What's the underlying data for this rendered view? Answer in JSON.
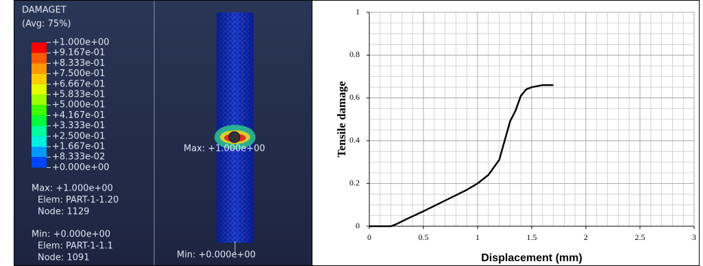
{
  "abaqus_panel": {
    "variable": "DAMAGET",
    "averaging": "(Avg: 75%)",
    "contour_labels": [
      "+1.000e+00",
      "+9.167e-01",
      "+8.333e-01",
      "+7.500e-01",
      "+6.667e-01",
      "+5.833e-01",
      "+5.000e-01",
      "+4.167e-01",
      "+3.333e-01",
      "+2.500e-01",
      "+1.667e-01",
      "+8.333e-02",
      "+0.000e+00"
    ],
    "contour_colors": [
      "#ff0000",
      "#ff5a00",
      "#ff9800",
      "#ffcc00",
      "#e5ff00",
      "#9cff00",
      "#3cff00",
      "#00ff3a",
      "#00ff9c",
      "#00f0e0",
      "#0098ff",
      "#0044ff"
    ],
    "max_info": [
      "Max: +1.000e+00",
      "Elem: PART-1-1.20",
      "Node: 1129"
    ],
    "min_info": [
      "Min: +0.000e+00",
      "Elem: PART-1-1.1",
      "Node: 1091"
    ],
    "model_max_label": "Max: +1.000e+00",
    "model_min_label": "Min: +0.000e+00"
  },
  "chart_data": {
    "type": "line",
    "x_label": "Displacement (mm)",
    "y_label": "Tensile damage",
    "x": [
      0,
      0.2,
      0.25,
      0.35,
      0.5,
      0.7,
      0.9,
      1.0,
      1.1,
      1.2,
      1.25,
      1.3,
      1.35,
      1.4,
      1.45,
      1.5,
      1.6,
      1.7
    ],
    "values": [
      0,
      0,
      0.01,
      0.035,
      0.07,
      0.12,
      0.17,
      0.2,
      0.24,
      0.31,
      0.4,
      0.49,
      0.54,
      0.61,
      0.64,
      0.65,
      0.66,
      0.66
    ],
    "color": "#000000",
    "xlim": [
      0,
      3
    ],
    "xticks": [
      0,
      0.5,
      1,
      1.5,
      2,
      2.5,
      3
    ],
    "ylim": [
      0,
      1
    ],
    "yticks": [
      0,
      0.2,
      0.4,
      0.6,
      0.8,
      1
    ],
    "grid": true
  }
}
